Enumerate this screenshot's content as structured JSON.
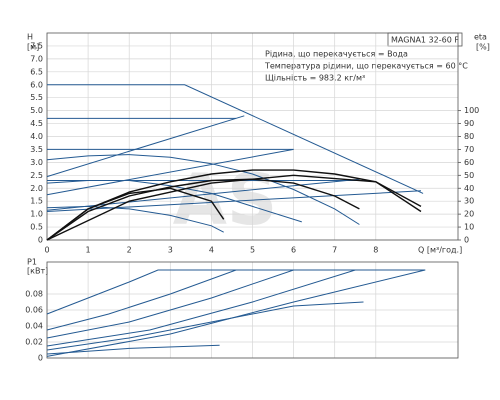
{
  "chart_data": [
    {
      "type": "line",
      "label_box": "MAGNA1 32-60 F",
      "notes": [
        "Рідина, що перекачується = Вода",
        "Температура рідини, що перекачується = 60 °C",
        "Щільність = 983.2 кг/м³"
      ],
      "ylabel": [
        "H",
        "[м]"
      ],
      "y2label": [
        "eta",
        "[%]"
      ],
      "xlabel": "Q [м³/год.]",
      "watermark": "AS",
      "xlim": [
        0,
        10
      ],
      "xticks": [
        0,
        1,
        2,
        3,
        4,
        5,
        6,
        7,
        8
      ],
      "ylim": [
        0,
        8
      ],
      "yticks": [
        0,
        0.5,
        {
          "value": 1,
          "label": "1.0"
        },
        1.5,
        {
          "value": 2,
          "label": "2.0"
        },
        2.5,
        {
          "value": 3,
          "label": "3.0"
        },
        3.5,
        {
          "value": 4,
          "label": "4.0"
        },
        4.5,
        {
          "value": 5,
          "label": "5.0"
        },
        5.5,
        {
          "value": 6,
          "label": "6.0"
        },
        6.5,
        {
          "value": 7,
          "label": "7.0"
        },
        7.5
      ],
      "y2lim": [
        0,
        160
      ],
      "y2ticks": [
        0,
        10,
        20,
        30,
        40,
        50,
        60,
        70,
        80,
        90,
        100
      ],
      "grid": true,
      "series": [
        {
          "color": "#245a92",
          "x": [
            0,
            3.35,
            9.15
          ],
          "values": [
            6,
            6,
            1.8
          ]
        },
        {
          "color": "#245a92",
          "x": [
            0,
            4.6
          ],
          "values": [
            4.7,
            4.7
          ]
        },
        {
          "color": "#245a92",
          "x": [
            0,
            6
          ],
          "values": [
            3.5,
            3.5
          ]
        },
        {
          "color": "#245a92",
          "x": [
            0,
            7.8
          ],
          "values": [
            2.3,
            2.3
          ]
        },
        {
          "color": "#245a92",
          "x": [
            0,
            4.8
          ],
          "values": [
            2.45,
            4.8
          ]
        },
        {
          "color": "#245a92",
          "x": [
            0,
            6
          ],
          "values": [
            1.75,
            3.5
          ]
        },
        {
          "color": "#245a92",
          "x": [
            0,
            7.6
          ],
          "values": [
            1.15,
            2.35
          ]
        },
        {
          "color": "#245a92",
          "x": [
            0,
            9.1
          ],
          "values": [
            1.1,
            1.9
          ]
        },
        {
          "color": "#245a92",
          "x": [
            0,
            1,
            2,
            3,
            4,
            5,
            6,
            7,
            7.6
          ],
          "values": [
            3.1,
            3.25,
            3.3,
            3.2,
            2.95,
            2.55,
            1.95,
            1.2,
            0.6
          ]
        },
        {
          "color": "#245a92",
          "x": [
            0,
            1,
            2,
            3,
            4,
            5,
            6.2
          ],
          "values": [
            2.2,
            2.3,
            2.3,
            2.1,
            1.8,
            1.3,
            0.7
          ]
        },
        {
          "color": "#245a92",
          "x": [
            0,
            1,
            2,
            3,
            4,
            4.3
          ],
          "values": [
            1.25,
            1.3,
            1.2,
            0.95,
            0.55,
            0.3
          ]
        },
        {
          "color": "#111111",
          "axis": "y2",
          "x": [
            0,
            1,
            2,
            3,
            4,
            5,
            6,
            7,
            8,
            9.1
          ],
          "values": [
            0,
            24,
            37,
            45,
            51,
            54,
            54,
            51,
            45,
            22
          ]
        },
        {
          "color": "#111111",
          "axis": "y2",
          "x": [
            0,
            1,
            2,
            3,
            4,
            4.3
          ],
          "values": [
            0,
            24,
            36,
            40,
            30,
            16
          ]
        },
        {
          "color": "#111111",
          "axis": "y2",
          "x": [
            0,
            1,
            2,
            3,
            4,
            5,
            6,
            7,
            7.6
          ],
          "values": [
            0,
            22,
            34,
            41,
            46,
            47,
            44,
            34,
            24
          ]
        },
        {
          "color": "#111111",
          "axis": "y2",
          "x": [
            0,
            2,
            4,
            6,
            8,
            9.1
          ],
          "values": [
            0,
            30,
            44,
            50,
            45,
            26
          ]
        }
      ]
    },
    {
      "type": "line",
      "ylabel": [
        "P1",
        "[кВт]"
      ],
      "ylim": [
        0,
        0.12
      ],
      "yticks": [
        0,
        0.02,
        0.04,
        0.06,
        0.08
      ],
      "grid": true,
      "series": [
        {
          "color": "#245a92",
          "x": [
            0,
            1,
            2,
            2.7,
            9.2
          ],
          "values": [
            0.055,
            0.075,
            0.095,
            0.11,
            0.11
          ]
        },
        {
          "color": "#245a92",
          "x": [
            0,
            1.5,
            3,
            4.6,
            9.2
          ],
          "values": [
            0.035,
            0.055,
            0.08,
            0.11,
            0.11
          ]
        },
        {
          "color": "#245a92",
          "x": [
            0,
            2,
            4,
            6,
            9.2
          ],
          "values": [
            0.025,
            0.045,
            0.075,
            0.11,
            0.11
          ]
        },
        {
          "color": "#245a92",
          "x": [
            0,
            2.5,
            5,
            7.5,
            9.2
          ],
          "values": [
            0.015,
            0.035,
            0.07,
            0.11,
            0.11
          ]
        },
        {
          "color": "#245a92",
          "x": [
            0,
            2,
            4,
            6,
            7.7
          ],
          "values": [
            0.01,
            0.025,
            0.045,
            0.065,
            0.07
          ]
        },
        {
          "color": "#245a92",
          "x": [
            0,
            2,
            4.2
          ],
          "values": [
            0.005,
            0.012,
            0.016
          ]
        },
        {
          "color": "#245a92",
          "x": [
            0,
            3,
            6,
            9.2
          ],
          "values": [
            0.002,
            0.03,
            0.07,
            0.11
          ]
        }
      ]
    }
  ]
}
